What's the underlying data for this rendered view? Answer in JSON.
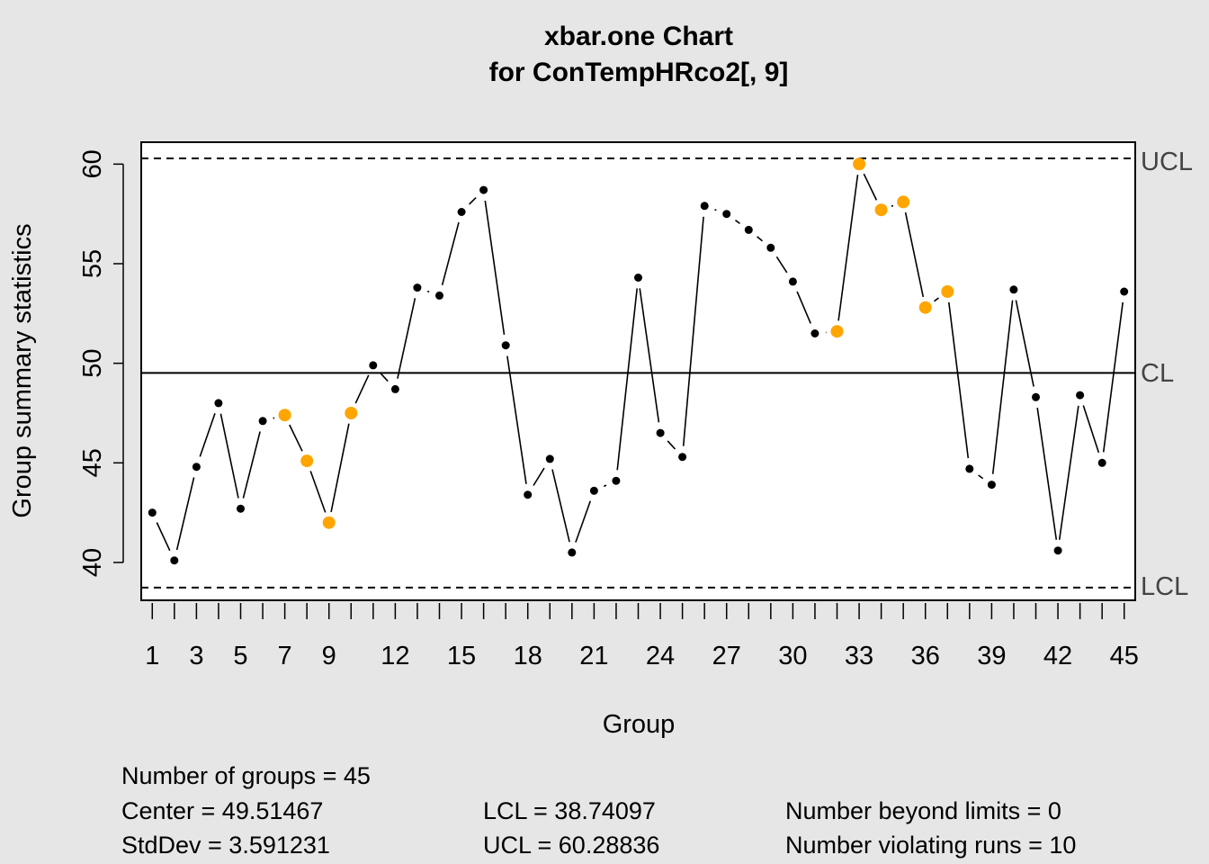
{
  "chart_data": {
    "type": "line",
    "title": "xbar.one Chart",
    "subtitle": "for ConTempHRco2[, 9]",
    "xlabel": "Group",
    "ylabel": "Group summary statistics",
    "xlim": [
      0.5,
      45.5
    ],
    "ylim": [
      38.1,
      61.1
    ],
    "y_ticks": [
      "40",
      "45",
      "50",
      "55",
      "60"
    ],
    "x_ticks": [
      "1",
      "3",
      "5",
      "7",
      "9",
      "12",
      "15",
      "18",
      "21",
      "24",
      "27",
      "30",
      "33",
      "36",
      "39",
      "42",
      "45"
    ],
    "limit_labels": {
      "ucl": "UCL",
      "cl": "CL",
      "lcl": "LCL"
    },
    "limits": {
      "center": 49.51467,
      "lcl": 38.74097,
      "ucl": 60.28836
    },
    "x": [
      1,
      2,
      3,
      4,
      5,
      6,
      7,
      8,
      9,
      10,
      11,
      12,
      13,
      14,
      15,
      16,
      17,
      18,
      19,
      20,
      21,
      22,
      23,
      24,
      25,
      26,
      27,
      28,
      29,
      30,
      31,
      32,
      33,
      34,
      35,
      36,
      37,
      38,
      39,
      40,
      41,
      42,
      43,
      44,
      45
    ],
    "values": [
      42.5,
      40.1,
      44.8,
      48.0,
      42.7,
      47.1,
      47.4,
      45.1,
      42.0,
      47.5,
      49.9,
      48.7,
      53.8,
      53.4,
      57.6,
      58.7,
      50.9,
      43.4,
      45.2,
      40.5,
      43.6,
      44.1,
      54.3,
      46.5,
      45.3,
      57.9,
      57.5,
      56.7,
      55.8,
      54.1,
      51.5,
      51.6,
      60.0,
      57.7,
      58.1,
      52.8,
      53.6,
      44.7,
      43.9,
      53.7,
      48.3,
      40.6,
      48.4,
      45.0,
      53.6
    ],
    "violating_runs": [
      7,
      8,
      9,
      10,
      32,
      33,
      34,
      35,
      36,
      37
    ],
    "colors": {
      "point": "#000000",
      "violation": "#ffa500",
      "line": "#000000",
      "panel": "#ffffff",
      "background": "#e6e6e6"
    },
    "grid": false
  },
  "stats": {
    "groups": "Number of groups = 45",
    "center": "Center = 49.51467",
    "stddev": "StdDev = 3.591231",
    "lcl": "LCL = 38.74097",
    "ucl": "UCL = 60.28836",
    "beyond": "Number beyond limits = 0",
    "runs": "Number violating runs = 10"
  }
}
